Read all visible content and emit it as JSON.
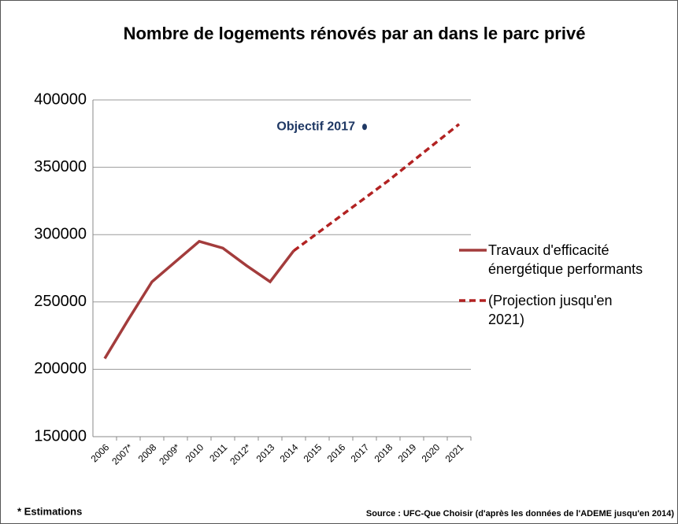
{
  "chart_data": {
    "type": "line",
    "title": "Nombre de logements rénovés par an dans le parc privé",
    "categories": [
      "2006",
      "2007*",
      "2008",
      "2009*",
      "2010",
      "2011",
      "2012*",
      "2013",
      "2014",
      "2015",
      "2016",
      "2017",
      "2018",
      "2019",
      "2020",
      "2021"
    ],
    "series": [
      {
        "name": "Travaux d'efficacité énergétique performants",
        "color": "#a33c3c",
        "line_style": "solid",
        "values": [
          208000,
          237000,
          265000,
          280000,
          295000,
          290000,
          277000,
          265000,
          288000,
          null,
          null,
          null,
          null,
          null,
          null,
          null
        ]
      },
      {
        "name": "(Projection jusqu'en 2021)",
        "color": "#b22222",
        "line_style": "dashed",
        "values": [
          null,
          null,
          null,
          null,
          null,
          null,
          null,
          null,
          288000,
          301000,
          314000,
          327000,
          340000,
          354000,
          368000,
          382000
        ]
      }
    ],
    "annotations": [
      {
        "text": "Objectif 2017",
        "x": "2017",
        "y": 380000,
        "color": "#1f3864"
      }
    ],
    "ylim": [
      150000,
      400000
    ],
    "yticks": [
      150000,
      200000,
      250000,
      300000,
      350000,
      400000
    ],
    "grid": true,
    "legend": "right",
    "footnote": "* Estimations",
    "source": "Source : UFC-Que Choisir (d'après les données de l'ADEME jusqu'en 2014)"
  }
}
